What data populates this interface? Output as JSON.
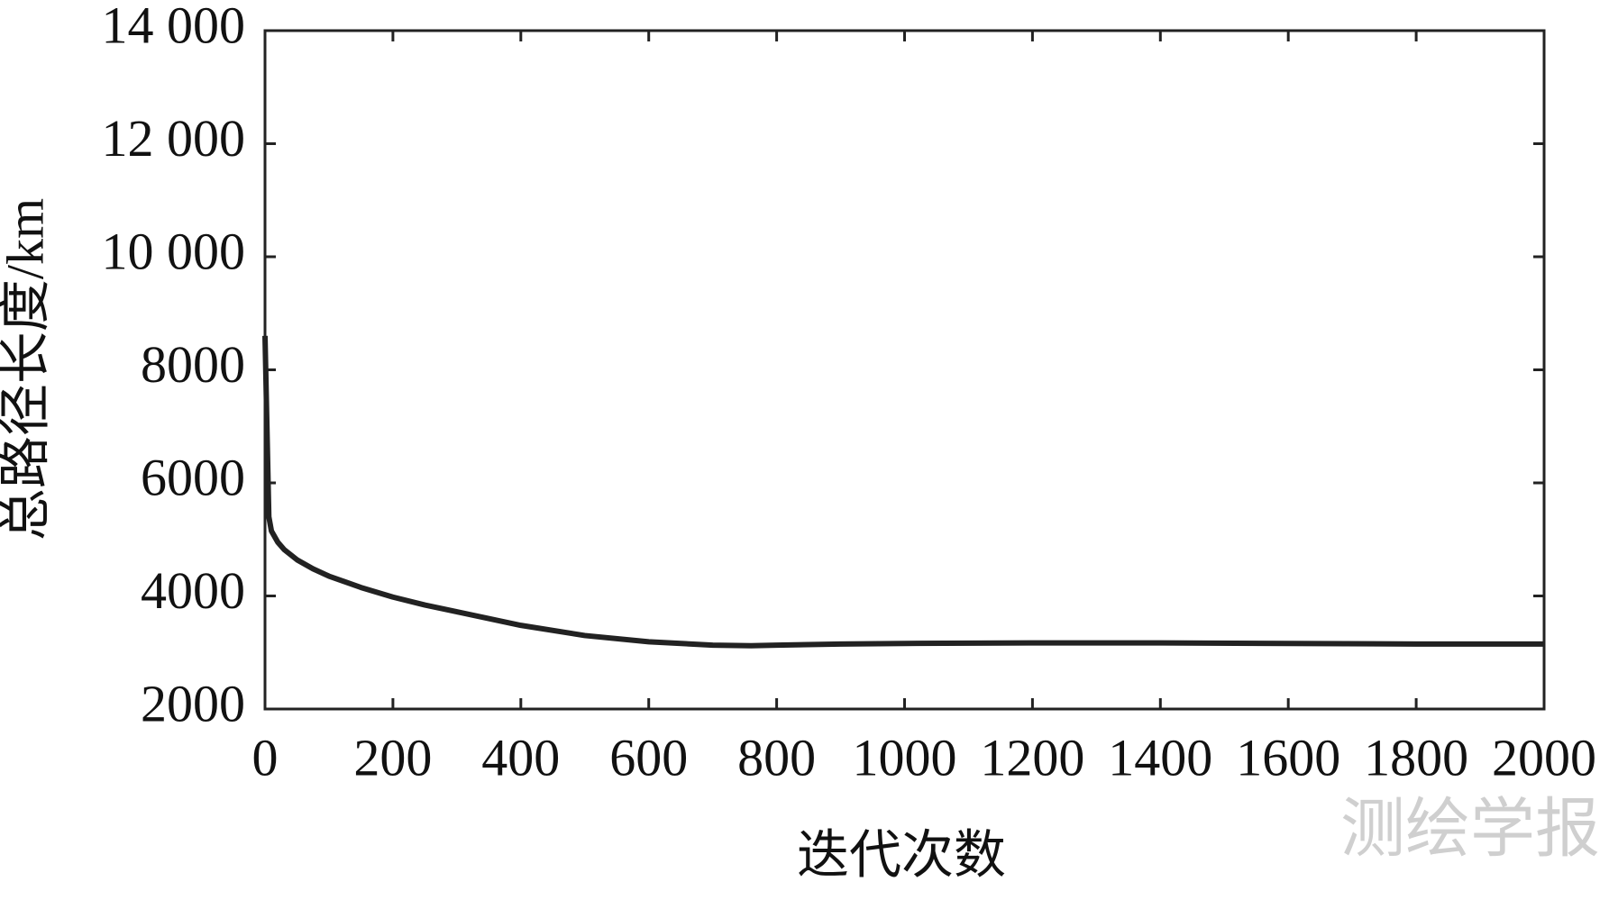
{
  "chart_data": {
    "type": "line",
    "x_label": "迭代次数",
    "y_label": "总路径长度/km",
    "watermark": "测绘学报",
    "x": [
      0,
      3,
      6,
      10,
      20,
      30,
      50,
      75,
      100,
      150,
      200,
      250,
      300,
      400,
      500,
      600,
      700,
      760,
      800,
      900,
      1000,
      1200,
      1400,
      1600,
      1800,
      2000
    ],
    "series": [
      {
        "name": "总路径长度",
        "color": "#222222",
        "values": [
          8600,
          7000,
          5400,
          5150,
          4950,
          4820,
          4640,
          4480,
          4350,
          4150,
          3980,
          3840,
          3720,
          3480,
          3300,
          3190,
          3130,
          3120,
          3130,
          3150,
          3160,
          3170,
          3170,
          3160,
          3150,
          3150
        ]
      }
    ],
    "xlim": [
      0,
      2000
    ],
    "xticks": [
      0,
      200,
      400,
      600,
      800,
      1000,
      1200,
      1400,
      1600,
      1800,
      2000
    ],
    "ylim": [
      2000,
      14000
    ],
    "yticks": [
      2000,
      4000,
      6000,
      8000,
      {
        "value": 10000,
        "label": "10 000"
      },
      {
        "value": 12000,
        "label": "12 000"
      },
      {
        "value": 14000,
        "label": "14 000"
      }
    ]
  }
}
